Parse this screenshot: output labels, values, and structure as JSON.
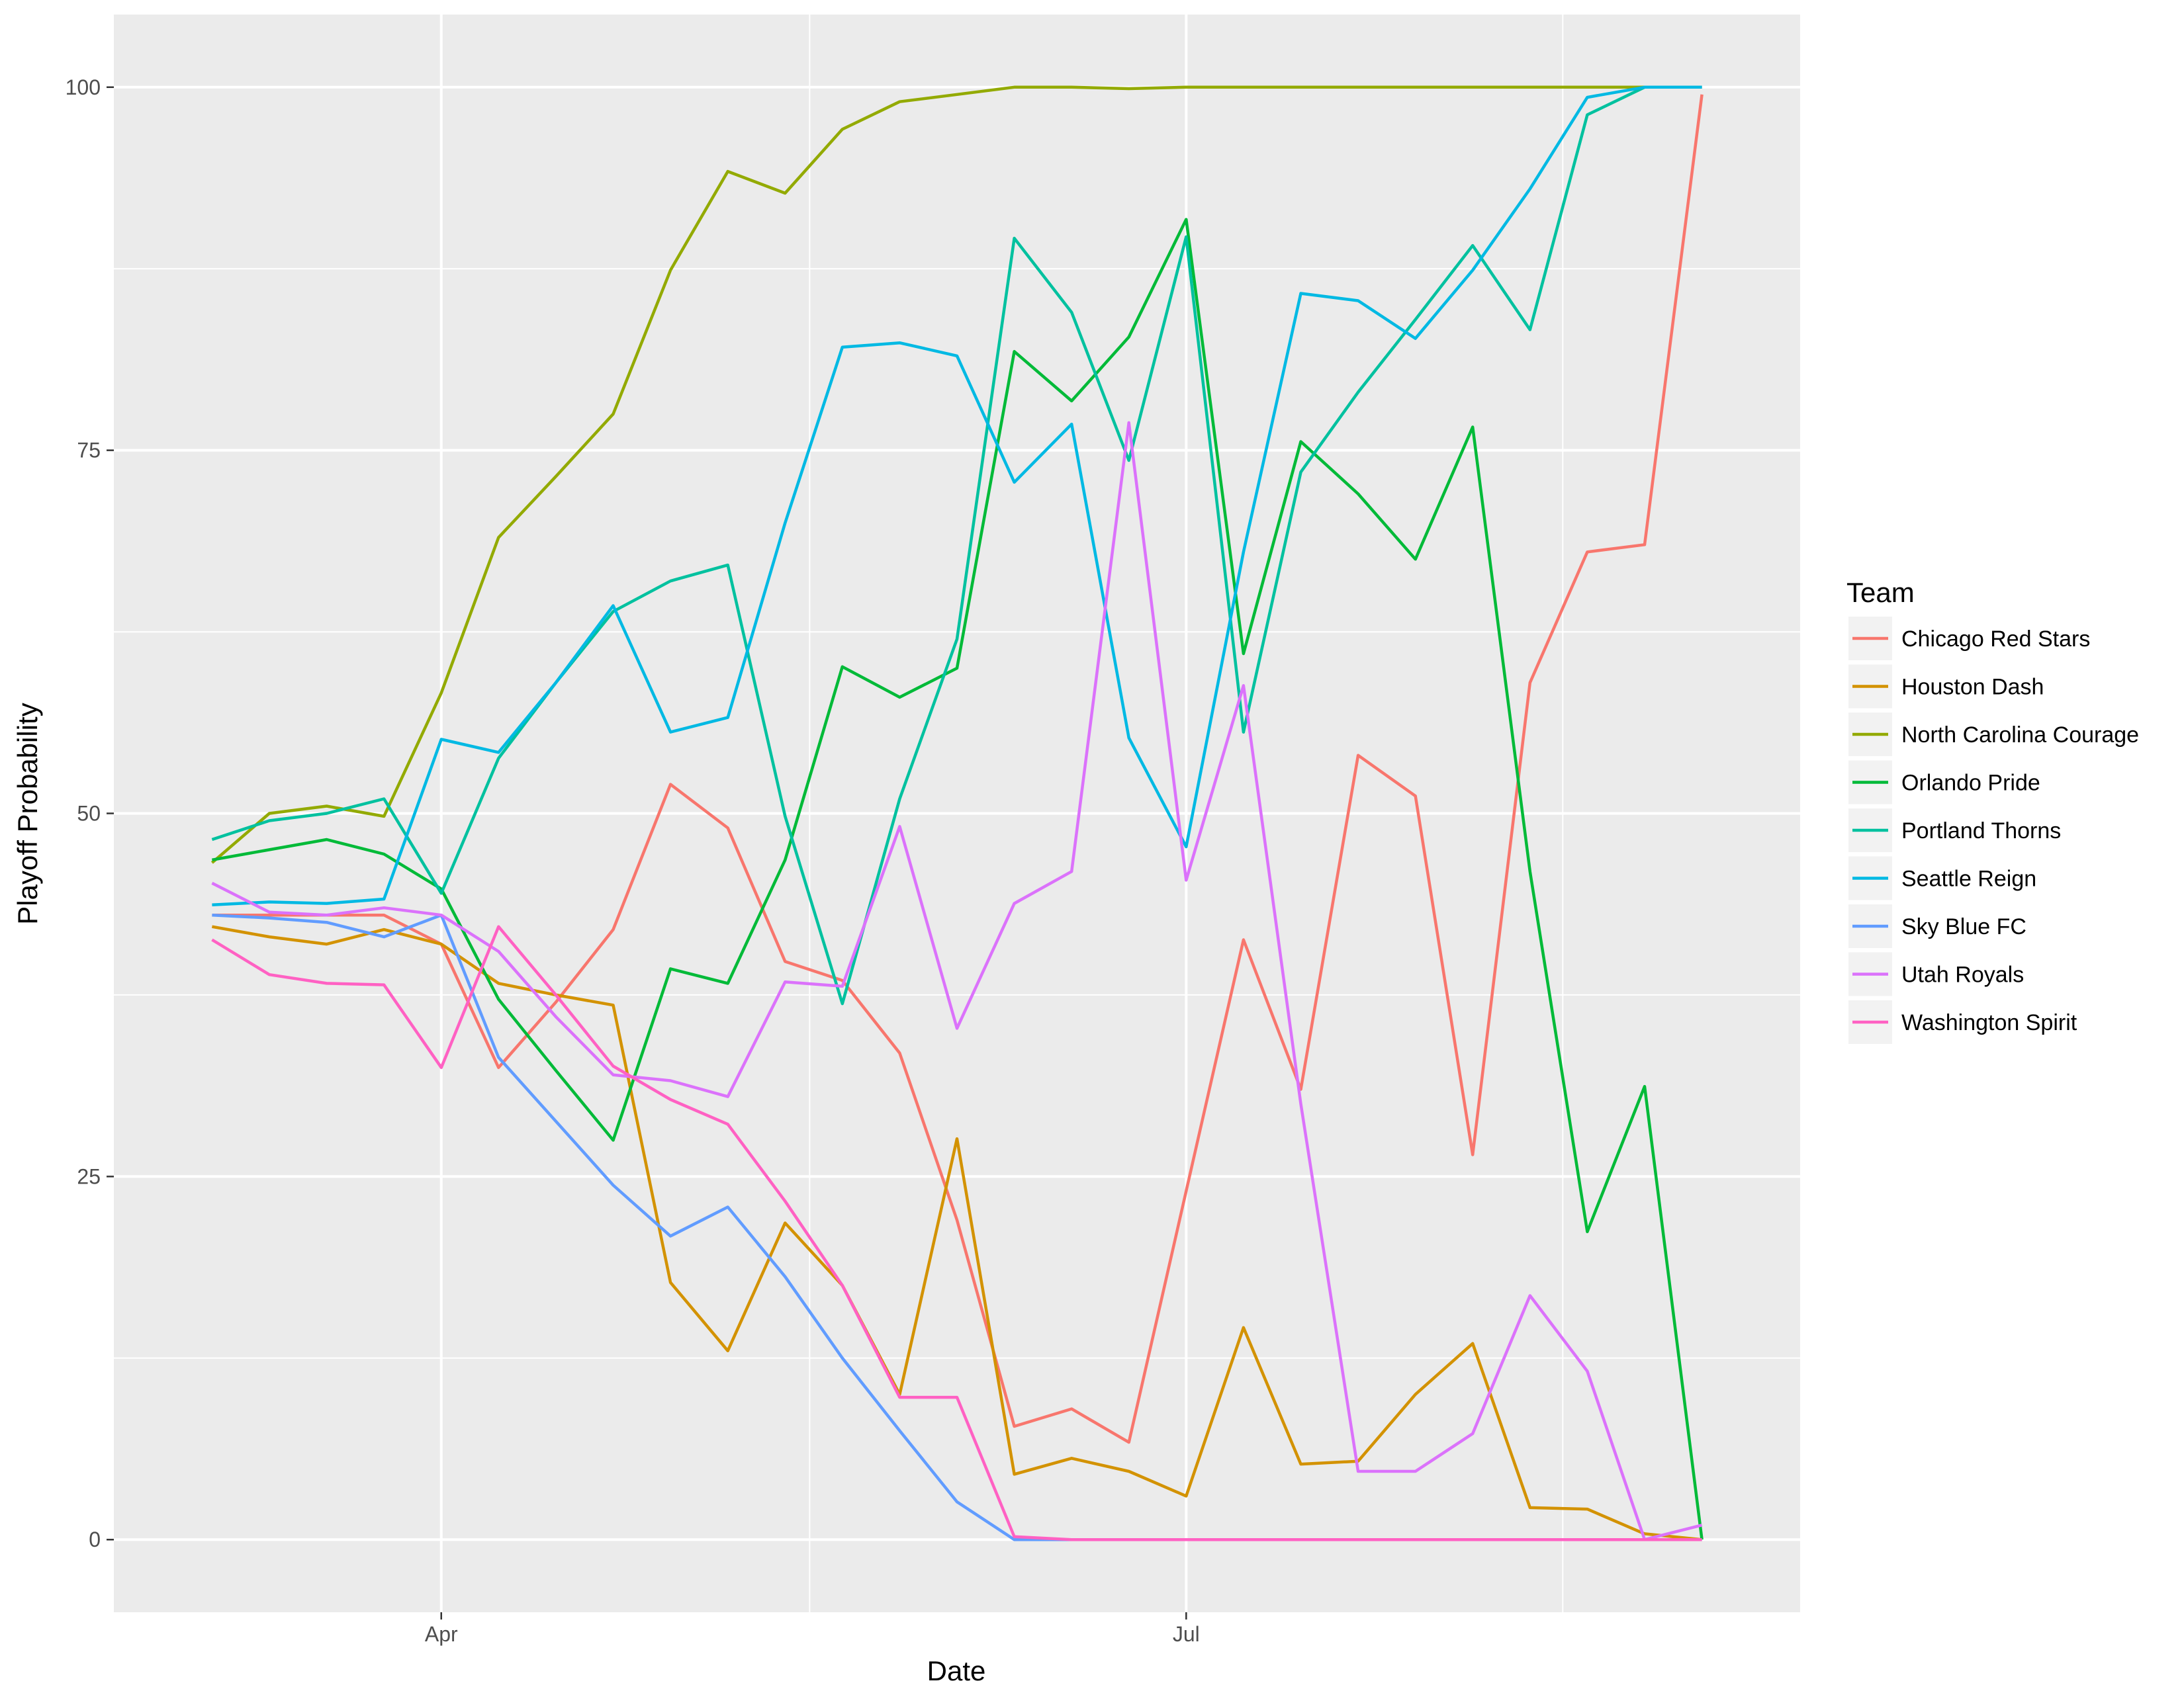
{
  "chart_data": {
    "type": "line",
    "xlabel": "Date",
    "ylabel": "Playoff Probability",
    "x_dates": [
      "03-09",
      "03-16",
      "03-23",
      "03-30",
      "04-06",
      "04-13",
      "04-20",
      "04-27",
      "05-04",
      "05-11",
      "05-18",
      "05-25",
      "06-01",
      "06-08",
      "06-15",
      "06-22",
      "06-29",
      "07-06",
      "07-13",
      "07-20",
      "07-27",
      "08-03",
      "08-10",
      "08-17",
      "08-24",
      "08-31",
      "09-07"
    ],
    "x_ticks": [
      {
        "date": "04-06",
        "label": "Apr"
      },
      {
        "date": "07-06",
        "label": "Jul"
      }
    ],
    "x_minor_ticks": [
      "05-21",
      "08-21"
    ],
    "xlim": [
      "02-25",
      "09-19"
    ],
    "ylim": [
      -5,
      105
    ],
    "y_ticks": [
      0,
      25,
      50,
      75,
      100
    ],
    "grid": true,
    "legend": {
      "title": "Team",
      "position": "right"
    },
    "series": [
      {
        "name": "Chicago Red Stars",
        "color": "#F8766D",
        "values": [
          43,
          43,
          43,
          43,
          41,
          32.5,
          37,
          42,
          52,
          49,
          39.8,
          38.5,
          33.5,
          22,
          7.8,
          9,
          6.7,
          24,
          41.3,
          31,
          54,
          51.2,
          26.5,
          59,
          68,
          68.5,
          99.5
        ]
      },
      {
        "name": "Houston Dash",
        "color": "#D39200",
        "values": [
          42.2,
          41.5,
          41,
          42,
          41,
          38.3,
          37.5,
          36.8,
          17.7,
          13,
          21.8,
          17.5,
          10,
          27.6,
          4.5,
          5.6,
          4.7,
          3,
          14.6,
          5.2,
          5.4,
          10,
          13.5,
          2.2,
          2.1,
          0.4,
          0
        ]
      },
      {
        "name": "North Carolina Courage",
        "color": "#93AA00",
        "values": [
          46.6,
          50,
          50.5,
          49.8,
          58.3,
          69,
          73.2,
          77.5,
          87.4,
          94.2,
          92.7,
          97.1,
          99,
          99.5,
          100,
          100,
          99.9,
          100,
          100,
          100,
          100,
          100,
          100,
          100,
          100,
          100,
          100
        ]
      },
      {
        "name": "Orlando Pride",
        "color": "#00BA38",
        "values": [
          46.8,
          47.5,
          48.2,
          47.2,
          44.8,
          37.2,
          32.3,
          27.5,
          39.3,
          38.3,
          46.8,
          60.1,
          58,
          60,
          81.8,
          78.4,
          82.8,
          90.9,
          61,
          75.6,
          72,
          67.5,
          76.6,
          46,
          21.2,
          31.2,
          0
        ]
      },
      {
        "name": "Portland Thorns",
        "color": "#00C19F",
        "values": [
          48.2,
          49.5,
          50,
          51,
          44.5,
          53.8,
          59,
          63.9,
          66,
          67.1,
          49.8,
          36.9,
          51,
          62,
          89.6,
          84.5,
          74.3,
          89.7,
          55.6,
          73.5,
          79,
          84,
          89.1,
          83.3,
          98.1,
          100,
          100
        ]
      },
      {
        "name": "Seattle Reign",
        "color": "#00B9E3",
        "values": [
          43.7,
          43.9,
          43.8,
          44.1,
          55.1,
          54.2,
          59,
          64.3,
          55.6,
          56.6,
          70,
          82.1,
          82.4,
          81.5,
          72.8,
          76.8,
          55.2,
          47.7,
          68,
          85.8,
          85.3,
          82.7,
          87.4,
          93,
          99.3,
          100,
          100
        ]
      },
      {
        "name": "Sky Blue FC",
        "color": "#619CFF",
        "values": [
          43,
          42.8,
          42.5,
          41.5,
          43,
          33.2,
          28.8,
          24.4,
          20.9,
          22.9,
          18.1,
          12.5,
          7.5,
          2.6,
          0,
          0,
          0,
          0,
          0,
          0,
          0,
          0,
          0,
          0,
          0,
          0,
          0
        ]
      },
      {
        "name": "Utah Royals",
        "color": "#DB72FB",
        "values": [
          45.2,
          43.2,
          43,
          43.5,
          43,
          40.5,
          36,
          32,
          31.6,
          30.5,
          38.4,
          38.1,
          49.1,
          35.2,
          43.8,
          46,
          76.9,
          45.4,
          58.8,
          30,
          4.7,
          4.7,
          7.3,
          16.8,
          11.6,
          0,
          1
        ]
      },
      {
        "name": "Washington Spirit",
        "color": "#FF61C3",
        "values": [
          41.3,
          38.9,
          38.3,
          38.2,
          32.5,
          42.2,
          37.5,
          32.6,
          30.3,
          28.6,
          23.3,
          17.5,
          9.8,
          9.8,
          0.2,
          0,
          0,
          0,
          0,
          0,
          0,
          0,
          0,
          0,
          0,
          0,
          0
        ]
      }
    ]
  }
}
